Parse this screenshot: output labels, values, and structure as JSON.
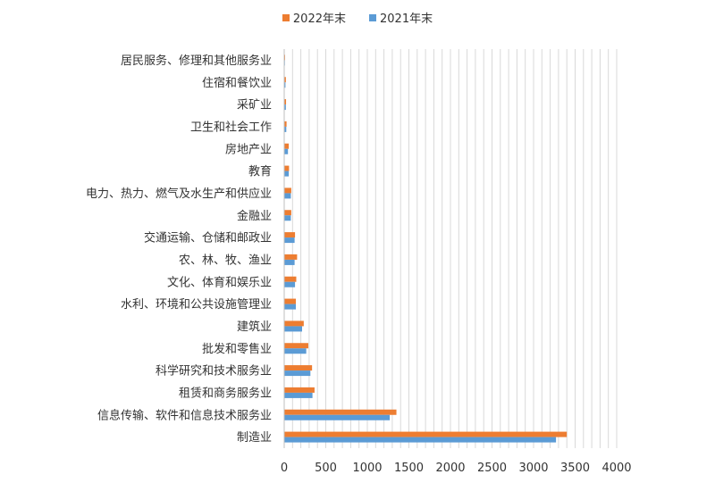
{
  "chart_data": {
    "type": "bar",
    "orientation": "horizontal",
    "categories": [
      "居民服务、修理和其他服务业",
      "住宿和餐饮业",
      "采矿业",
      "卫生和社会工作",
      "房地产业",
      "教育",
      "电力、热力、燃气及水生产和供应业",
      "金融业",
      "交通运输、仓储和邮政业",
      "农、林、牧、渔业",
      "文化、体育和娱乐业",
      "水利、环境和公共设施管理业",
      "建筑业",
      "批发和零售业",
      "科学研究和技术服务业",
      "租赁和商务服务业",
      "信息传输、软件和信息技术服务业",
      "制造业"
    ],
    "series": [
      {
        "name": "2022年末",
        "color": "#ED7D31",
        "values": [
          10,
          20,
          22,
          28,
          55,
          58,
          85,
          85,
          130,
          155,
          145,
          140,
          235,
          290,
          335,
          365,
          1350,
          3400
        ]
      },
      {
        "name": "2021年末",
        "color": "#5B9BD5",
        "values": [
          8,
          15,
          20,
          25,
          45,
          55,
          80,
          80,
          125,
          125,
          130,
          140,
          215,
          265,
          315,
          340,
          1270,
          3270
        ]
      }
    ],
    "xlim": [
      0,
      4000
    ],
    "xticks": [
      "0",
      "500",
      "1000",
      "1500",
      "2000",
      "2500",
      "3000",
      "3500",
      "4000"
    ],
    "grid": true,
    "legend_position": "top"
  }
}
